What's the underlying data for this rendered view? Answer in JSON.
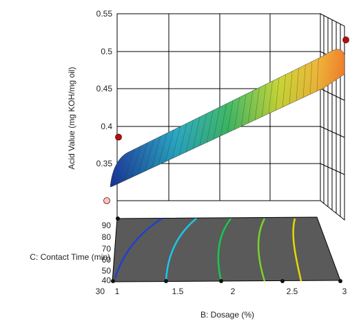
{
  "chart_data": {
    "type": "surface-3d",
    "zlabel": "Acid Value (mg KOH/mg oil)",
    "xlabel": "B: Dosage (%)",
    "ylabel": "C: Contact Time (min)",
    "x_ticks": [
      "1",
      "1.5",
      "2",
      "2.5",
      "3"
    ],
    "y_ticks": [
      "30",
      "40",
      "50",
      "60",
      "70",
      "80",
      "90"
    ],
    "z_ticks": [
      "0.35",
      "0.4",
      "0.45",
      "0.5",
      "0.55"
    ],
    "xlim": [
      1,
      3
    ],
    "ylim": [
      30,
      90
    ],
    "zlim": [
      0.3,
      0.55
    ],
    "surface_edges": {
      "dosage_1_time_30": 0.33,
      "dosage_1_time_90": 0.36,
      "dosage_3_time_30": 0.51,
      "dosage_3_time_90": 0.53
    },
    "design_points": [
      {
        "dosage": 1,
        "time": 30,
        "acid_value": 0.3,
        "color": "#f5c8c0"
      },
      {
        "dosage": 1,
        "time": 30,
        "acid_value": 0.385,
        "color": "#b01010"
      },
      {
        "dosage": 3,
        "time": 30,
        "acid_value": 0.515,
        "color": "#b01010"
      }
    ],
    "contour_colors": [
      "#1f3fd0",
      "#19c8e8",
      "#18c850",
      "#78d428",
      "#e8d800"
    ],
    "floor_color": "#5a5a5a"
  }
}
